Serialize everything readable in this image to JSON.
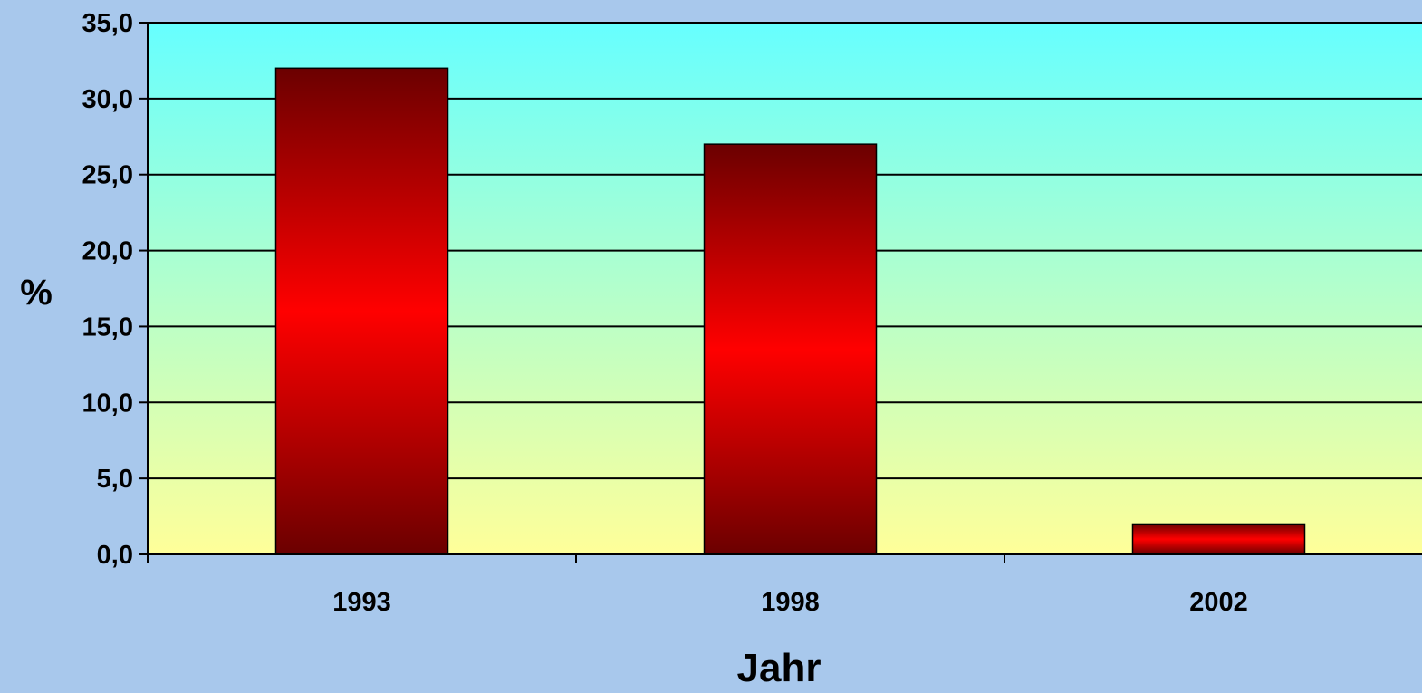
{
  "chart_data": {
    "type": "bar",
    "categories": [
      "1993",
      "1998",
      "2002"
    ],
    "values": [
      32.0,
      27.0,
      2.0
    ],
    "xlabel": "Jahr",
    "ylabel": "%",
    "ylim": [
      0,
      35
    ],
    "yticks": [
      0,
      5,
      10,
      15,
      20,
      25,
      30,
      35
    ],
    "ytick_labels": [
      "0,0",
      "5,0",
      "10,0",
      "15,0",
      "20,0",
      "25,0",
      "30,0",
      "35,0"
    ],
    "grid": true,
    "legend": "none"
  },
  "colors": {
    "page_background": "#a8c8ec",
    "plot_top": "#66ffff",
    "plot_bottom": "#ffff99",
    "bar_dark": "#6b0000",
    "bar_bright": "#ff0000",
    "gridline": "#000000"
  }
}
